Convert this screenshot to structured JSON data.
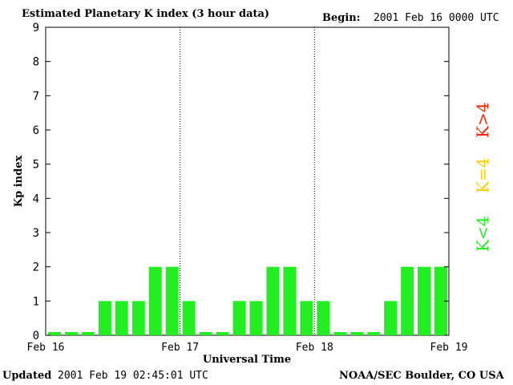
{
  "header": {
    "title": "Estimated Planetary K index (3 hour data)",
    "begin_label": "Begin:",
    "begin_value": "2001 Feb 16 0000 UTC"
  },
  "footer": {
    "updated_label": "Updated",
    "updated_value": "2001 Feb 19 02:45:01 UTC",
    "source": "NOAA/SEC Boulder, CO USA"
  },
  "legend": {
    "high": "K>4",
    "mid": "K=4",
    "low": "K<4",
    "colors": {
      "high": "#ff2200",
      "mid": "#ffcc00",
      "low": "#22ee22"
    }
  },
  "chart_data": {
    "type": "bar",
    "xlabel": "Universal Time",
    "ylabel": "Kp index",
    "ylim": [
      0,
      9
    ],
    "yticks": [
      0,
      1,
      2,
      3,
      4,
      5,
      6,
      7,
      8,
      9
    ],
    "day_labels": [
      "Feb 16",
      "Feb 17",
      "Feb 18",
      "Feb 19"
    ],
    "grid": "dotted day dividers",
    "bar_color": "#22ee22",
    "values": [
      0,
      0,
      0,
      1,
      1,
      1,
      2,
      2,
      1,
      0,
      0,
      1,
      1,
      2,
      2,
      1,
      1,
      0,
      0,
      0,
      1,
      2,
      2,
      2
    ]
  }
}
